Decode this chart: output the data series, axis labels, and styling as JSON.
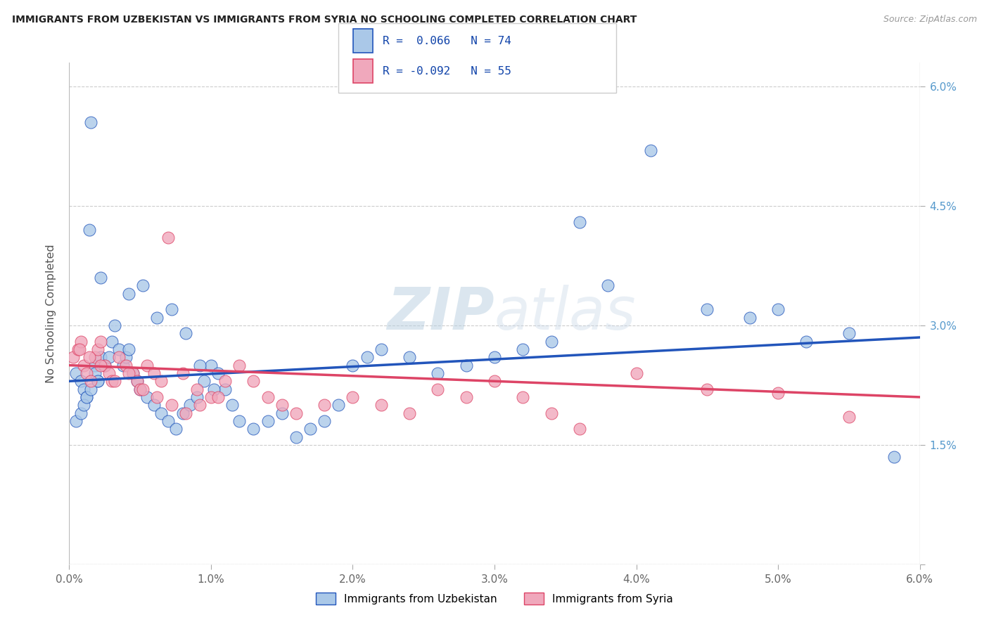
{
  "title": "IMMIGRANTS FROM UZBEKISTAN VS IMMIGRANTS FROM SYRIA NO SCHOOLING COMPLETED CORRELATION CHART",
  "source": "Source: ZipAtlas.com",
  "ylabel": "No Schooling Completed",
  "color_uzbekistan": "#aac8e8",
  "color_syria": "#f0a8bc",
  "line_color_uzbekistan": "#2255bb",
  "line_color_syria": "#dd4466",
  "watermark_zip": "ZIP",
  "watermark_atlas": "atlas",
  "legend1_label": "Immigrants from Uzbekistan",
  "legend2_label": "Immigrants from Syria",
  "legend_r1": "R =  0.066   N = 74",
  "legend_r2": "R = -0.092   N = 55",
  "xlim": [
    0.0,
    6.0
  ],
  "ylim": [
    0.0,
    6.3
  ],
  "ytick_vals": [
    0.0,
    1.5,
    3.0,
    4.5,
    6.0
  ],
  "ytick_labels": [
    "",
    "1.5%",
    "3.0%",
    "4.5%",
    "6.0%"
  ],
  "xtick_vals": [
    0,
    1,
    2,
    3,
    4,
    5,
    6
  ],
  "xtick_labels": [
    "0.0%",
    "1.0%",
    "2.0%",
    "3.0%",
    "4.0%",
    "5.0%",
    "6.0%"
  ],
  "uzb_x": [
    0.05,
    0.08,
    0.1,
    0.12,
    0.15,
    0.18,
    0.2,
    0.22,
    0.05,
    0.08,
    0.1,
    0.12,
    0.15,
    0.18,
    0.2,
    0.25,
    0.28,
    0.3,
    0.35,
    0.38,
    0.4,
    0.42,
    0.45,
    0.48,
    0.5,
    0.55,
    0.6,
    0.65,
    0.7,
    0.75,
    0.8,
    0.85,
    0.9,
    0.95,
    1.0,
    1.05,
    1.1,
    1.15,
    1.2,
    1.3,
    1.4,
    1.5,
    1.6,
    1.7,
    1.8,
    1.9,
    2.0,
    2.1,
    2.2,
    2.4,
    2.6,
    2.8,
    3.0,
    3.2,
    3.4,
    3.6,
    3.8,
    4.1,
    4.5,
    4.8,
    5.0,
    5.2,
    5.5,
    5.82,
    0.14,
    0.22,
    0.32,
    0.42,
    0.52,
    0.62,
    0.72,
    0.82,
    0.92,
    1.02
  ],
  "uzb_y": [
    2.4,
    2.3,
    2.2,
    2.1,
    5.55,
    2.5,
    2.3,
    2.6,
    1.8,
    1.9,
    2.0,
    2.1,
    2.2,
    2.4,
    2.3,
    2.5,
    2.6,
    2.8,
    2.7,
    2.5,
    2.6,
    2.7,
    2.4,
    2.3,
    2.2,
    2.1,
    2.0,
    1.9,
    1.8,
    1.7,
    1.9,
    2.0,
    2.1,
    2.3,
    2.5,
    2.4,
    2.2,
    2.0,
    1.8,
    1.7,
    1.8,
    1.9,
    1.6,
    1.7,
    1.8,
    2.0,
    2.5,
    2.6,
    2.7,
    2.6,
    2.4,
    2.5,
    2.6,
    2.7,
    2.8,
    4.3,
    3.5,
    5.2,
    3.2,
    3.1,
    3.2,
    2.8,
    2.9,
    1.35,
    4.2,
    3.6,
    3.0,
    3.4,
    3.5,
    3.1,
    3.2,
    2.9,
    2.5,
    2.2
  ],
  "syr_x": [
    0.03,
    0.06,
    0.08,
    0.1,
    0.12,
    0.15,
    0.18,
    0.2,
    0.22,
    0.25,
    0.28,
    0.3,
    0.35,
    0.4,
    0.45,
    0.48,
    0.5,
    0.55,
    0.6,
    0.65,
    0.7,
    0.8,
    0.9,
    1.0,
    1.1,
    1.2,
    1.3,
    1.4,
    1.5,
    1.6,
    1.8,
    2.0,
    2.2,
    2.4,
    2.6,
    2.8,
    3.0,
    3.2,
    3.4,
    3.6,
    4.0,
    4.5,
    5.0,
    5.5,
    0.07,
    0.14,
    0.22,
    0.32,
    0.42,
    0.52,
    0.62,
    0.72,
    0.82,
    0.92,
    1.05
  ],
  "syr_y": [
    2.6,
    2.7,
    2.8,
    2.5,
    2.4,
    2.3,
    2.6,
    2.7,
    2.8,
    2.5,
    2.4,
    2.3,
    2.6,
    2.5,
    2.4,
    2.3,
    2.2,
    2.5,
    2.4,
    2.3,
    4.1,
    2.4,
    2.2,
    2.1,
    2.3,
    2.5,
    2.3,
    2.1,
    2.0,
    1.9,
    2.0,
    2.1,
    2.0,
    1.9,
    2.2,
    2.1,
    2.3,
    2.1,
    1.9,
    1.7,
    2.4,
    2.2,
    2.15,
    1.85,
    2.7,
    2.6,
    2.5,
    2.3,
    2.4,
    2.2,
    2.1,
    2.0,
    1.9,
    2.0,
    2.1
  ]
}
